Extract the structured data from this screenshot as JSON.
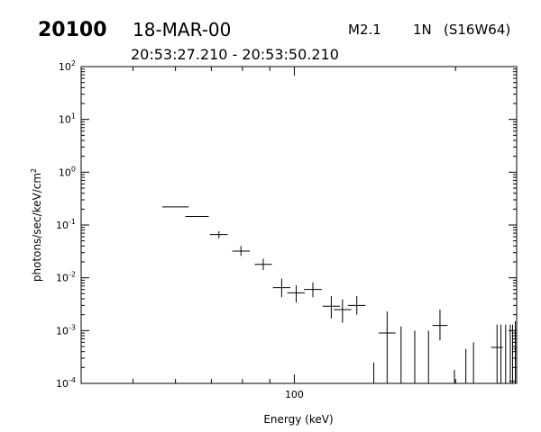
{
  "header": {
    "event_id": "20100",
    "date": "18-MAR-00",
    "flare_class": "M2.1",
    "optical_class": "1N",
    "location": "(S16W64)",
    "time_range": "20:53:27.210 - 20:53:50.210"
  },
  "chart_data": {
    "type": "scatter",
    "title": "",
    "xlabel": "Energy (keV)",
    "ylabel": "photons/sec/keV/cm",
    "ylabel_sup": "2",
    "xscale": "log",
    "yscale": "log",
    "xlim": [
      40,
      260
    ],
    "ylim": [
      0.0001,
      100
    ],
    "x_tick_labels": [
      "100"
    ],
    "y_tick_labels": [
      {
        "base": "10",
        "exp": "2"
      },
      {
        "base": "10",
        "exp": "1"
      },
      {
        "base": "10",
        "exp": "0"
      },
      {
        "base": "10",
        "exp": "-1"
      },
      {
        "base": "10",
        "exp": "-2"
      },
      {
        "base": "10",
        "exp": "-3"
      },
      {
        "base": "10",
        "exp": "-4"
      }
    ],
    "grid": false,
    "series": [
      {
        "points": [
          {
            "x": 59.9,
            "y": 0.22,
            "xlo": 56.7,
            "xhi": 63.5,
            "ylo": 0.22,
            "yhi": 0.22
          },
          {
            "x": 65.7,
            "y": 0.145,
            "xlo": 62.6,
            "xhi": 69.2,
            "ylo": 0.145,
            "yhi": 0.145
          },
          {
            "x": 72.3,
            "y": 0.066,
            "xlo": 69.6,
            "xhi": 75.1,
            "ylo": 0.056,
            "yhi": 0.076
          },
          {
            "x": 79.5,
            "y": 0.032,
            "xlo": 76.6,
            "xhi": 82.6,
            "ylo": 0.026,
            "yhi": 0.04
          },
          {
            "x": 87.5,
            "y": 0.018,
            "xlo": 84.3,
            "xhi": 90.8,
            "ylo": 0.014,
            "yhi": 0.023
          },
          {
            "x": 94.7,
            "y": 0.0065,
            "xlo": 91.2,
            "xhi": 98.3,
            "ylo": 0.0043,
            "yhi": 0.0096
          },
          {
            "x": 100.8,
            "y": 0.0052,
            "xlo": 97.0,
            "xhi": 104.6,
            "ylo": 0.0034,
            "yhi": 0.0072
          },
          {
            "x": 108.3,
            "y": 0.006,
            "xlo": 104.2,
            "xhi": 112.5,
            "ylo": 0.0043,
            "yhi": 0.0082
          },
          {
            "x": 117.2,
            "y": 0.0029,
            "xlo": 112.9,
            "xhi": 121.7,
            "ylo": 0.0017,
            "yhi": 0.0045
          },
          {
            "x": 123.0,
            "y": 0.0025,
            "xlo": 118.5,
            "xhi": 127.7,
            "ylo": 0.0014,
            "yhi": 0.0039
          },
          {
            "x": 130.8,
            "y": 0.003,
            "xlo": 125.9,
            "xhi": 135.8,
            "ylo": 0.002,
            "yhi": 0.0045
          },
          {
            "x": 140.7,
            "y": 0.0001,
            "xlo": 140.7,
            "xhi": 140.7,
            "ylo": 0.0001,
            "yhi": 0.00025
          },
          {
            "x": 149.0,
            "y": 0.0009,
            "xlo": 143.7,
            "xhi": 154.5,
            "ylo": 0.0001,
            "yhi": 0.0023
          },
          {
            "x": 158.2,
            "y": 0.0001,
            "xlo": 158.2,
            "xhi": 158.2,
            "ylo": 0.0001,
            "yhi": 0.0012
          },
          {
            "x": 167.8,
            "y": 0.0001,
            "xlo": 167.8,
            "xhi": 167.8,
            "ylo": 0.0001,
            "yhi": 0.001
          },
          {
            "x": 178.0,
            "y": 0.0001,
            "xlo": 178.0,
            "xhi": 178.0,
            "ylo": 0.0001,
            "yhi": 0.001
          },
          {
            "x": 187.0,
            "y": 0.00125,
            "xlo": 181.0,
            "xhi": 193.3,
            "ylo": 0.00065,
            "yhi": 0.0025
          },
          {
            "x": 199.0,
            "y": 0.0001,
            "xlo": 199.0,
            "xhi": 199.0,
            "ylo": 0.0001,
            "yhi": 0.00018
          },
          {
            "x": 209.0,
            "y": 0.0001,
            "xlo": 209.0,
            "xhi": 209.0,
            "ylo": 0.0001,
            "yhi": 0.00045
          },
          {
            "x": 216.0,
            "y": 0.0001,
            "xlo": 216.0,
            "xhi": 216.0,
            "ylo": 0.0001,
            "yhi": 0.0006
          },
          {
            "x": 239.0,
            "y": 0.00048,
            "xlo": 233.0,
            "xhi": 245.0,
            "ylo": 0.0001,
            "yhi": 0.0013
          },
          {
            "x": 243.0,
            "y": 0.0001,
            "xlo": 243.0,
            "xhi": 243.0,
            "ylo": 0.0001,
            "yhi": 0.0013
          },
          {
            "x": 248.0,
            "y": 0.0001,
            "xlo": 248.0,
            "xhi": 248.0,
            "ylo": 0.0001,
            "yhi": 0.0013
          },
          {
            "x": 253.0,
            "y": 0.0001,
            "xlo": 253.0,
            "xhi": 253.0,
            "ylo": 0.0001,
            "yhi": 0.0013
          },
          {
            "x": 255.5,
            "y": 0.00011,
            "xlo": 252.0,
            "xhi": 259.0,
            "ylo": 0.0001,
            "yhi": 0.0013
          },
          {
            "x": 258.5,
            "y": 0.00045,
            "xlo": 256.5,
            "xhi": 260.0,
            "ylo": 0.0001,
            "yhi": 0.0015
          }
        ]
      }
    ]
  }
}
